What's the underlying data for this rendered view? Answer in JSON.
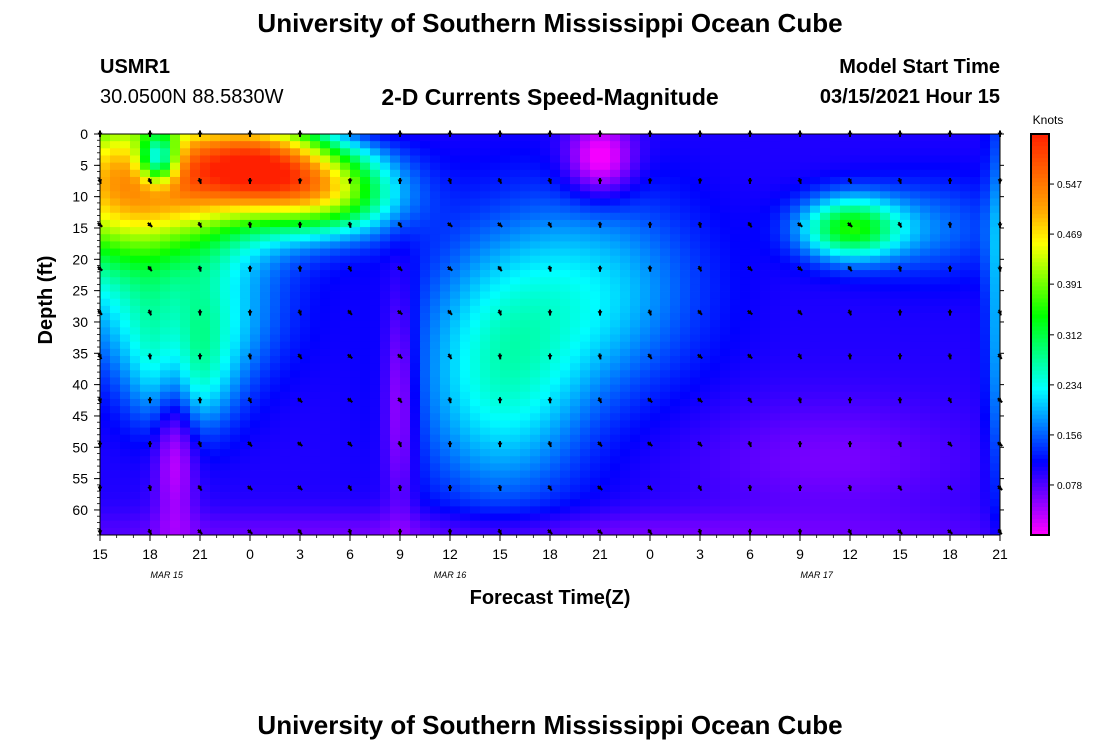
{
  "header": {
    "title": "University of Southern Mississippi Ocean Cube",
    "station": "USMR1",
    "coords": "30.0500N 88.5830W",
    "subtitle": "2-D Currents Speed-Magnitude",
    "model_label": "Model Start Time",
    "model_time": "03/15/2021 Hour 15"
  },
  "footer": {
    "title": "University of Southern Mississippi Ocean Cube"
  },
  "chart_data": {
    "type": "heatmap",
    "xlabel": "Forecast Time(Z)",
    "ylabel": "Depth (ft)",
    "x_ticks": [
      "15",
      "18",
      "21",
      "0",
      "3",
      "6",
      "9",
      "12",
      "15",
      "18",
      "21",
      "0",
      "3",
      "6",
      "9",
      "12",
      "15",
      "18",
      "21"
    ],
    "date_labels": [
      {
        "label": "MAR 15",
        "at_hour": 4
      },
      {
        "label": "MAR 16",
        "at_hour": 21
      },
      {
        "label": "MAR 17",
        "at_hour": 43
      }
    ],
    "x_range_hours": [
      0,
      54
    ],
    "y_ticks": [
      0,
      5,
      10,
      15,
      20,
      25,
      30,
      35,
      40,
      45,
      50,
      55,
      60
    ],
    "y_range_ft": [
      0,
      64
    ],
    "colorbar": {
      "unit": "Knots",
      "ticks": [
        "0.547",
        "0.469",
        "0.391",
        "0.312",
        "0.234",
        "0.156",
        "0.078"
      ],
      "range": [
        0,
        0.625
      ],
      "colors": [
        "#ff00ff",
        "#8000ff",
        "#0000ff",
        "#0080ff",
        "#00ffff",
        "#00ff80",
        "#00ff00",
        "#80ff00",
        "#ffff00",
        "#ffa000",
        "#ff6000",
        "#ff2000"
      ]
    },
    "vector_rows_ft": [
      0,
      7.5,
      14.5,
      21.5,
      28.5,
      35.5,
      42.5,
      49.5,
      56.5,
      63.5
    ],
    "vector_cols_hours": [
      0,
      3,
      6,
      9,
      12,
      15,
      18,
      21,
      24,
      27,
      30,
      33,
      36,
      39,
      42,
      45,
      48,
      51,
      54
    ],
    "arrow_direction": "mostly southward to south-westward (pointing down-left)"
  }
}
